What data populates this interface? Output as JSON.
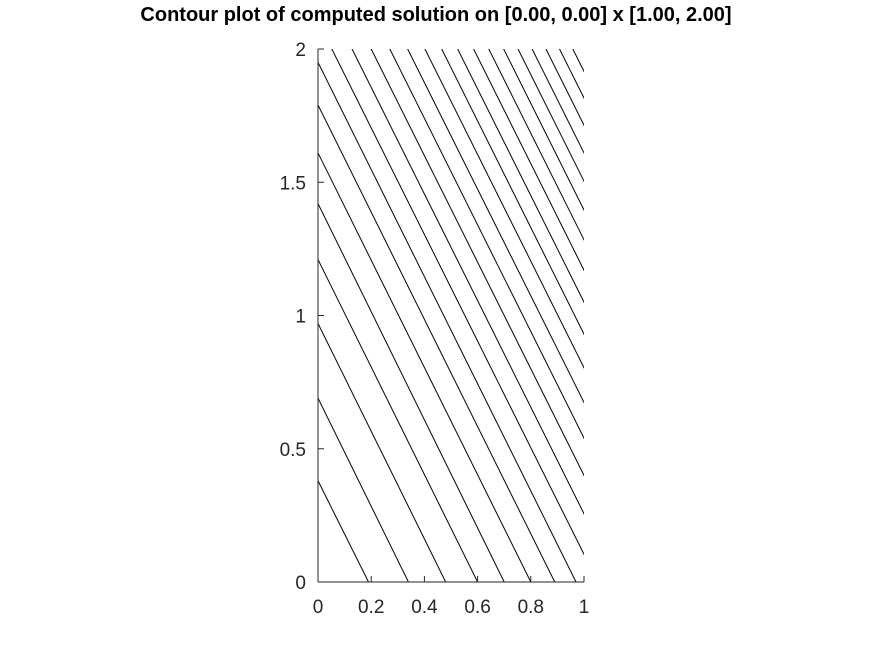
{
  "chart_data": {
    "type": "contour",
    "title": "Contour plot of computed solution on [0.00, 0.00] x [1.00, 2.00]",
    "xlabel": "",
    "ylabel": "",
    "xlim": [
      0,
      1
    ],
    "ylim": [
      0,
      2
    ],
    "x_ticks": [
      {
        "value": 0,
        "label": "0"
      },
      {
        "value": 0.2,
        "label": "0.2"
      },
      {
        "value": 0.4,
        "label": "0.4"
      },
      {
        "value": 0.6,
        "label": "0.6"
      },
      {
        "value": 0.8,
        "label": "0.8"
      },
      {
        "value": 1,
        "label": "1"
      }
    ],
    "y_ticks": [
      {
        "value": 0,
        "label": "0"
      },
      {
        "value": 0.5,
        "label": "0.5"
      },
      {
        "value": 1,
        "label": "1"
      },
      {
        "value": 1.5,
        "label": "1.5"
      },
      {
        "value": 2,
        "label": "2"
      }
    ],
    "grid": false,
    "line_color": "#000000",
    "contour_lines": [
      {
        "x_at_y0": 0.19,
        "y_at_x0": 0.38
      },
      {
        "x_at_y0": 0.34,
        "y_at_x0": 0.69
      },
      {
        "x_at_y0": 0.48,
        "y_at_x0": 0.97
      },
      {
        "x_at_y0": 0.6,
        "y_at_x0": 1.21
      },
      {
        "x_at_y0": 0.7,
        "y_at_x0": 1.42
      },
      {
        "x_at_y0": 0.8,
        "y_at_x0": 1.61
      },
      {
        "x_at_y0": 0.89,
        "y_at_x0": 1.79
      },
      {
        "x_at_y0": 0.97,
        "y_at_x0": 1.95
      },
      {
        "x_at_y0": 1.052,
        "y_at_x0": 2.104
      },
      {
        "x_at_y0": 1.128,
        "y_at_x0": 2.256
      },
      {
        "x_at_y0": 1.2,
        "y_at_x0": 2.4
      },
      {
        "x_at_y0": 1.27,
        "y_at_x0": 2.54
      },
      {
        "x_at_y0": 1.337,
        "y_at_x0": 2.674
      },
      {
        "x_at_y0": 1.402,
        "y_at_x0": 2.804
      },
      {
        "x_at_y0": 1.465,
        "y_at_x0": 2.93
      },
      {
        "x_at_y0": 1.525,
        "y_at_x0": 3.05
      },
      {
        "x_at_y0": 1.585,
        "y_at_x0": 3.17
      },
      {
        "x_at_y0": 1.642,
        "y_at_x0": 3.284
      },
      {
        "x_at_y0": 1.698,
        "y_at_x0": 3.396
      },
      {
        "x_at_y0": 1.752,
        "y_at_x0": 3.504
      },
      {
        "x_at_y0": 1.805,
        "y_at_x0": 3.61
      },
      {
        "x_at_y0": 1.857,
        "y_at_x0": 3.714
      },
      {
        "x_at_y0": 1.908,
        "y_at_x0": 3.816
      },
      {
        "x_at_y0": 1.958,
        "y_at_x0": 3.916
      }
    ]
  }
}
